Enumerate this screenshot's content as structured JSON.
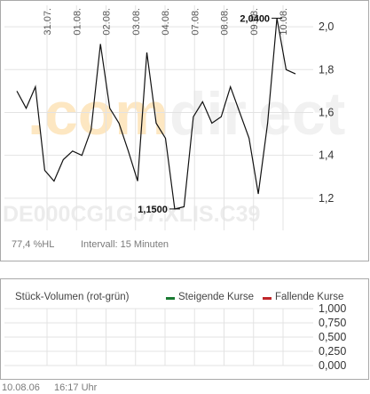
{
  "chart_data": [
    {
      "type": "line",
      "ylim": [
        1.05,
        2.1
      ],
      "y_ticks": [
        "2,0",
        "1,8",
        "1,6",
        "1,4",
        "1,2"
      ],
      "y_tick_values": [
        2.0,
        1.8,
        1.6,
        1.4,
        1.2
      ],
      "x_ticks": [
        "31.07.",
        "01.08.",
        "02.08.",
        "03.08.",
        "04.08.",
        "07.08.",
        "08.08.",
        "09.08.",
        "10.08."
      ],
      "grid": true,
      "watermark": "DE000CG1GJ7.XLIS.C39",
      "annotations": {
        "high_label": "2,0400",
        "high": 2.04,
        "low_label": "1,1500",
        "low": 1.15
      },
      "series": [
        {
          "x": [
            0,
            0.3,
            0.6,
            0.9,
            1.2,
            1.5,
            1.8,
            2.1,
            2.4,
            2.7,
            3.0,
            3.3,
            3.6,
            3.9,
            4.2,
            4.5,
            4.8,
            5.1,
            5.4,
            5.7,
            6.0,
            6.3,
            6.6,
            6.9,
            7.2,
            7.5,
            7.8,
            8.1,
            8.4,
            8.7,
            9.0
          ],
          "values": [
            1.7,
            1.62,
            1.72,
            1.33,
            1.28,
            1.38,
            1.42,
            1.4,
            1.52,
            1.92,
            1.62,
            1.55,
            1.42,
            1.28,
            1.88,
            1.55,
            1.48,
            1.15,
            1.16,
            1.58,
            1.65,
            1.55,
            1.58,
            1.72,
            1.6,
            1.48,
            1.22,
            1.55,
            2.04,
            1.8,
            1.78
          ]
        }
      ]
    },
    {
      "type": "area",
      "title": "Stück-Volumen (rot-grün)",
      "ylim": [
        0,
        1
      ],
      "y_ticks": [
        "1,000",
        "0,750",
        "0,500",
        "0,250",
        "0,000"
      ],
      "y_tick_values": [
        1.0,
        0.75,
        0.5,
        0.25,
        0.0
      ],
      "grid": true,
      "legend": "top-right",
      "series": [
        {
          "name": "Steigende Kurse",
          "color": "#1a7a32",
          "values": []
        },
        {
          "name": "Fallende Kurse",
          "color": "#c0262a",
          "values": []
        }
      ]
    }
  ],
  "price_panel": {
    "info_left": "77,4 %HL",
    "info_right": "Intervall: 15 Minuten"
  },
  "footer": {
    "date": "10.08.06",
    "time": "16:17 Uhr"
  },
  "colors": {
    "line": "#111111",
    "grid": "#e3e3e3",
    "panel_border": "#a9a9a9",
    "watermark": "#f4f4f4",
    "watermark_accent": "#fde7c2",
    "rising": "#1a7a32",
    "falling": "#c0262a"
  }
}
